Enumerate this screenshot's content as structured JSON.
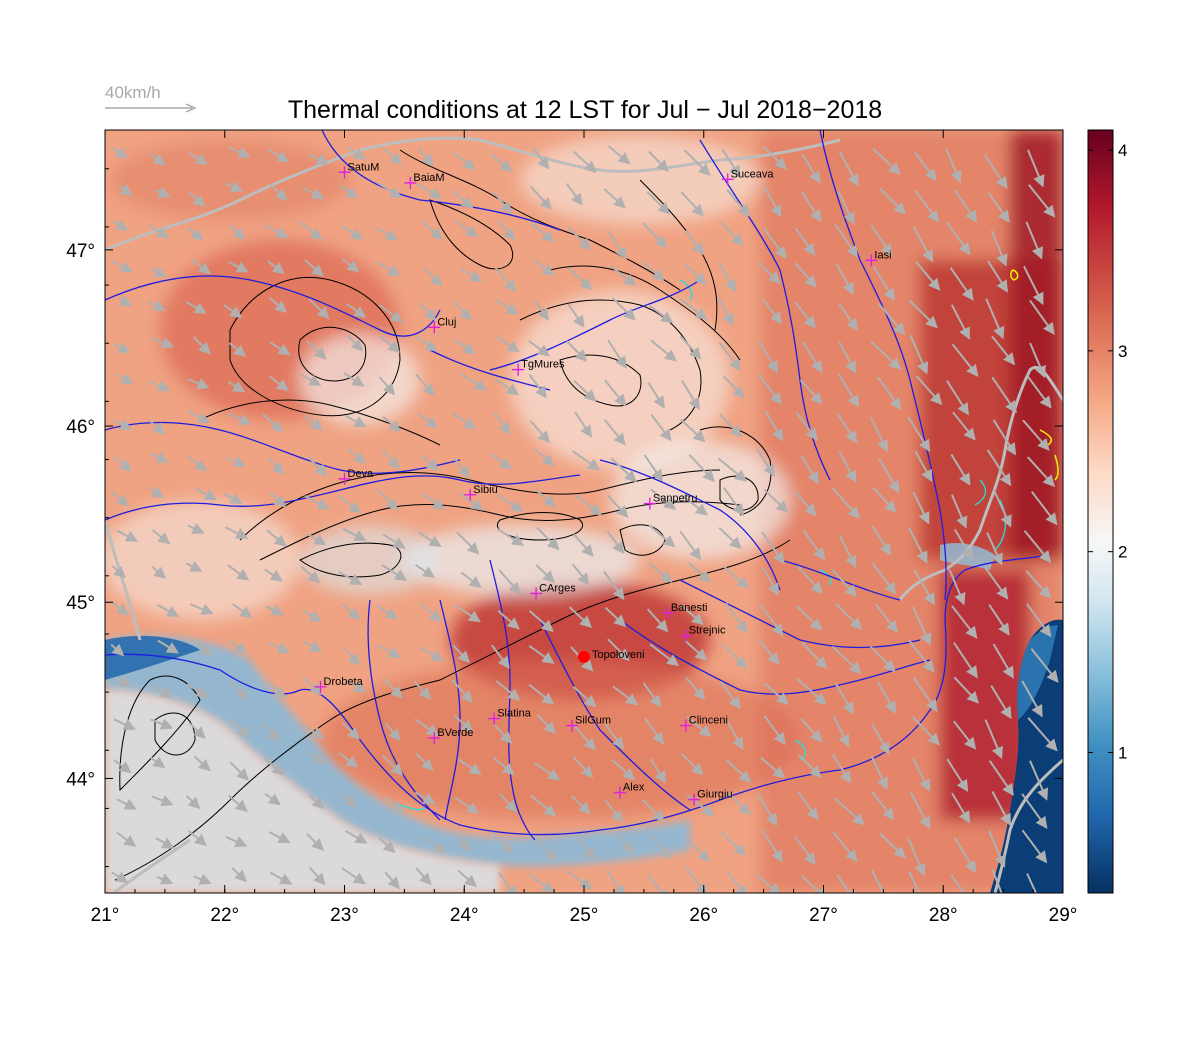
{
  "title": "Thermal conditions at 12 LST for Jul − Jul  2018−2018",
  "wind_legend": {
    "label": "40km/h",
    "arrow_color": "#a8a8a8"
  },
  "map": {
    "lon_range": [
      21,
      29
    ],
    "lat_range": [
      43.35,
      47.68
    ],
    "x_ticks": [
      "21°",
      "22°",
      "23°",
      "24°",
      "25°",
      "26°",
      "27°",
      "28°",
      "29°"
    ],
    "y_ticks": [
      "44°",
      "45°",
      "46°",
      "47°"
    ],
    "colors": {
      "river": "#1d1de0",
      "border": "#bdbdbd",
      "contour": "#000000",
      "station": "#e020e0",
      "focus": "#ff0000",
      "wind": "#b0b0b0"
    }
  },
  "colorbar": {
    "labels": [
      "1",
      "2",
      "3",
      "4"
    ],
    "range": [
      0.3,
      4.1
    ],
    "stops": [
      "#053061",
      "#2166ac",
      "#4393c3",
      "#92c5de",
      "#d1e5f0",
      "#f7f7f7",
      "#fddbc7",
      "#f4a582",
      "#d6604d",
      "#b2182b",
      "#67001f"
    ]
  },
  "cities": [
    {
      "name": "SatuM",
      "lon": 23.0,
      "lat": 47.44
    },
    {
      "name": "BaiaM",
      "lon": 23.55,
      "lat": 47.38
    },
    {
      "name": "Suceava",
      "lon": 26.2,
      "lat": 47.4
    },
    {
      "name": "Iasi",
      "lon": 27.4,
      "lat": 46.94
    },
    {
      "name": "Cluj",
      "lon": 23.75,
      "lat": 46.56
    },
    {
      "name": "TgMures",
      "lon": 24.45,
      "lat": 46.32
    },
    {
      "name": "Deva",
      "lon": 23.0,
      "lat": 45.7
    },
    {
      "name": "Sibiu",
      "lon": 24.05,
      "lat": 45.61
    },
    {
      "name": "Sanpetru",
      "lon": 25.55,
      "lat": 45.56
    },
    {
      "name": "CArges",
      "lon": 24.6,
      "lat": 45.05
    },
    {
      "name": "Banesti",
      "lon": 25.7,
      "lat": 44.94
    },
    {
      "name": "Strejnic",
      "lon": 25.85,
      "lat": 44.81
    },
    {
      "name": "Drobeta",
      "lon": 22.8,
      "lat": 44.52
    },
    {
      "name": "Slatina",
      "lon": 24.25,
      "lat": 44.34
    },
    {
      "name": "SilGum",
      "lon": 24.9,
      "lat": 44.3
    },
    {
      "name": "Clinceni",
      "lon": 25.85,
      "lat": 44.3
    },
    {
      "name": "BVerde",
      "lon": 23.75,
      "lat": 44.23
    },
    {
      "name": "Alex",
      "lon": 25.3,
      "lat": 43.92
    },
    {
      "name": "Giurgiu",
      "lon": 25.92,
      "lat": 43.88
    }
  ],
  "focus_site": {
    "name": "Topoloveni",
    "lon": 25.0,
    "lat": 44.69
  }
}
